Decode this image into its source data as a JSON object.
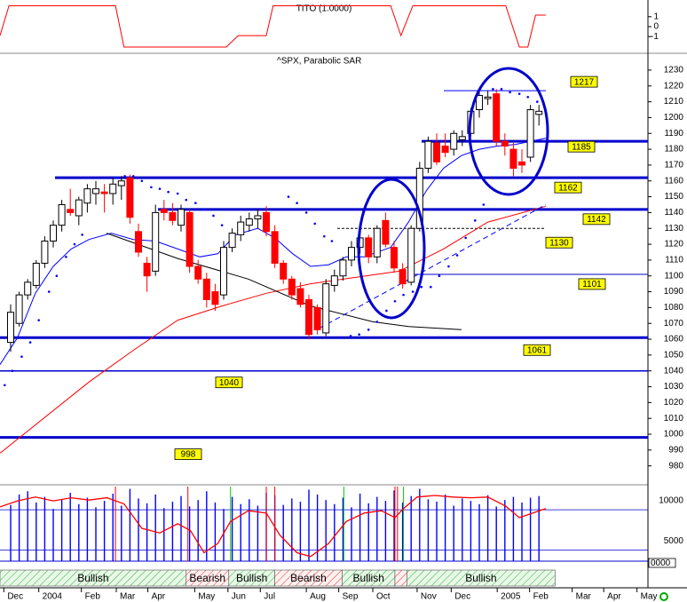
{
  "chart_data": [
    {
      "type": "line",
      "title": "TITO (1.0000)",
      "color": "#ff0000",
      "x": [
        -1.25,
        -0.2,
        12.3,
        13.3,
        25.3,
        26.7,
        30,
        30.8,
        44.6,
        45.8,
        47.2,
        58.1,
        59.7,
        60.7,
        61.6,
        62.8
      ],
      "values": [
        -0.9,
        2.1,
        2.1,
        -2.05,
        -2.05,
        -0.9,
        -0.9,
        2.1,
        2.1,
        -0.9,
        2.1,
        2.1,
        -2.05,
        -2.05,
        1.16,
        1.16
      ],
      "xlim": [
        -1.25,
        74.79
      ],
      "ylim": [
        -2.5,
        2.5
      ],
      "yticks": [
        1,
        0,
        -1
      ]
    },
    {
      "type": "candlestick",
      "title": "^SPX, Parabolic SAR",
      "x": [
        0,
        1,
        2,
        3,
        4,
        5,
        6,
        7,
        8,
        9,
        10,
        11,
        12,
        13,
        14,
        15,
        16,
        17,
        18,
        19,
        20,
        21,
        22,
        23,
        24,
        25,
        26,
        27,
        28,
        29,
        30,
        31,
        32,
        33,
        34,
        35,
        36,
        37,
        38,
        39,
        40,
        41,
        42,
        43,
        44,
        45,
        46,
        47,
        48,
        49,
        50,
        51,
        52,
        53,
        54,
        55,
        56,
        57,
        58,
        59,
        60,
        61,
        62
      ],
      "open": [
        1058,
        1070,
        1088,
        1094,
        1108,
        1122,
        1132,
        1142,
        1138,
        1146,
        1152,
        1153,
        1152,
        1157,
        1162,
        1128,
        1108,
        1103,
        1142,
        1140,
        1132,
        1140,
        1106,
        1098,
        1090,
        1088,
        1118,
        1126,
        1132,
        1136,
        1140,
        1128,
        1108,
        1098,
        1092,
        1085,
        1080,
        1064,
        1094,
        1100,
        1110,
        1118,
        1124,
        1112,
        1135,
        1118,
        1104,
        1096,
        1130,
        1168,
        1184,
        1182,
        1180,
        1186,
        1190,
        1205,
        1212,
        1215,
        1185,
        1180,
        1172,
        1175,
        1202
      ],
      "high": [
        1082,
        1090,
        1098,
        1110,
        1125,
        1135,
        1148,
        1155,
        1150,
        1158,
        1160,
        1158,
        1162,
        1163,
        1164,
        1133,
        1112,
        1145,
        1148,
        1146,
        1145,
        1142,
        1110,
        1102,
        1095,
        1122,
        1130,
        1138,
        1140,
        1142,
        1144,
        1132,
        1110,
        1100,
        1096,
        1088,
        1082,
        1098,
        1104,
        1112,
        1122,
        1128,
        1126,
        1132,
        1140,
        1122,
        1108,
        1132,
        1172,
        1188,
        1190,
        1190,
        1192,
        1192,
        1206,
        1217,
        1217,
        1218,
        1190,
        1184,
        1180,
        1208,
        1208
      ],
      "low": [
        1052,
        1068,
        1085,
        1092,
        1105,
        1118,
        1128,
        1138,
        1132,
        1140,
        1145,
        1140,
        1145,
        1148,
        1133,
        1112,
        1090,
        1100,
        1135,
        1132,
        1128,
        1102,
        1095,
        1080,
        1078,
        1085,
        1115,
        1122,
        1128,
        1130,
        1125,
        1105,
        1095,
        1085,
        1080,
        1060,
        1063,
        1062,
        1090,
        1097,
        1106,
        1114,
        1108,
        1108,
        1118,
        1102,
        1092,
        1094,
        1128,
        1165,
        1170,
        1175,
        1176,
        1182,
        1188,
        1200,
        1208,
        1182,
        1176,
        1163,
        1165,
        1172,
        1195
      ],
      "close": [
        1077,
        1088,
        1096,
        1108,
        1122,
        1132,
        1145,
        1140,
        1148,
        1155,
        1155,
        1152,
        1158,
        1160,
        1137,
        1115,
        1100,
        1140,
        1140,
        1135,
        1142,
        1106,
        1098,
        1085,
        1082,
        1118,
        1127,
        1134,
        1136,
        1138,
        1128,
        1108,
        1098,
        1088,
        1082,
        1063,
        1066,
        1095,
        1100,
        1110,
        1118,
        1124,
        1112,
        1130,
        1120,
        1105,
        1095,
        1130,
        1168,
        1185,
        1172,
        1178,
        1190,
        1188,
        1204,
        1214,
        1213,
        1185,
        1182,
        1168,
        1170,
        1205,
        1204
      ],
      "up_color": "#ffffff",
      "down_color": "#ff0000",
      "lines": [
        {
          "color": "#0000ff",
          "x": [
            -1.25,
            0.8,
            2.9,
            5,
            7.1,
            9.2,
            11.8,
            14.4,
            17,
            19.6,
            22.2,
            24.3,
            26.4,
            29,
            31,
            33.1,
            35.2,
            37.3,
            39.4,
            41.5,
            44.6,
            46.7,
            48.8,
            50.8,
            52.9,
            55,
            57.1,
            59.2,
            62.8
          ],
          "values": [
            1044,
            1061,
            1089,
            1106,
            1117,
            1123,
            1127,
            1123,
            1122,
            1117,
            1112,
            1114,
            1126,
            1130,
            1124,
            1114,
            1106,
            1107,
            1112,
            1112,
            1118,
            1134,
            1154,
            1168,
            1176,
            1180,
            1182,
            1183,
            1187
          ]
        },
        {
          "color": "#ff0000",
          "x": [
            -1.25,
            9.2,
            14.4,
            19.6,
            24.8,
            30,
            35.2,
            40.4,
            45.6,
            50.8,
            56,
            62.8
          ],
          "values": [
            988,
            1033,
            1053,
            1072,
            1081,
            1089,
            1095,
            1099,
            1103,
            1117,
            1134,
            1144
          ]
        },
        {
          "color": "#000000",
          "x": [
            11.25,
            19.6,
            27.9,
            35.2,
            42.5,
            46.7,
            52.9
          ],
          "values": [
            1127,
            1111,
            1098,
            1081,
            1071,
            1068,
            1066
          ]
        },
        {
          "color": "#0000ff",
          "dashed": true,
          "x": [
            36.25,
            62.8
          ],
          "values": [
            1067,
            1145
          ]
        }
      ],
      "sar": {
        "color": "#0000ff",
        "x": [
          -0.7,
          0.2,
          1.3,
          2.3,
          3.3,
          4.5,
          5.4,
          6.5,
          7.5,
          8.4,
          12.5,
          13.4,
          14.4,
          15.4,
          16.5,
          17.5,
          18.5,
          19.6,
          20.6,
          21.7,
          22.7,
          23.8,
          24.8,
          32.6,
          33.6,
          34.7,
          35.7,
          36.8,
          37.7,
          39.9,
          40.9,
          42,
          43,
          44.1,
          45.1,
          46.1,
          47.2,
          48.2,
          49.3,
          50.3,
          51.4,
          52.4,
          53.4,
          54.5,
          55.5,
          56.6,
          57.6,
          58.6,
          59.7,
          60.7,
          61.8
        ],
        "values": [
          1031,
          1040,
          1049,
          1058,
          1072,
          1090,
          1100,
          1112,
          1120,
          1126,
          1162,
          1163,
          1163,
          1160,
          1156,
          1155,
          1153,
          1152,
          1148,
          1146,
          1142,
          1138,
          1132,
          1150,
          1146,
          1140,
          1133,
          1125,
          1122,
          1062,
          1063,
          1066,
          1071,
          1078,
          1084,
          1088,
          1090,
          1093,
          1093,
          1100,
          1106,
          1113,
          1124,
          1135,
          1145,
          1218,
          1218,
          1216,
          1215,
          1213,
          1210
        ]
      },
      "levels": [
        1217,
        1185,
        1162,
        1142,
        1130,
        1101,
        1061,
        1040,
        998
      ],
      "xlim": [
        -1.25,
        74.79
      ],
      "ylim": [
        968.6,
        1239.5
      ],
      "yticks": [
        980,
        990,
        1000,
        1010,
        1020,
        1030,
        1040,
        1050,
        1060,
        1070,
        1080,
        1090,
        1100,
        1110,
        1120,
        1130,
        1140,
        1150,
        1160,
        1170,
        1180,
        1190,
        1200,
        1210,
        1220,
        1230
      ],
      "xticks": [
        {
          "value": -0.8,
          "label": "Dec"
        },
        {
          "value": 3.3,
          "label": "2004"
        },
        {
          "value": 8.3,
          "label": "Feb"
        },
        {
          "value": 12.4,
          "label": "Mar"
        },
        {
          "value": 16.1,
          "label": "Apr"
        },
        {
          "value": 21.6,
          "label": "May"
        },
        {
          "value": 25.5,
          "label": "Jun"
        },
        {
          "value": 29.3,
          "label": "Jul"
        },
        {
          "value": 34.7,
          "label": "Aug"
        },
        {
          "value": 38.5,
          "label": "Sep"
        },
        {
          "value": 42.5,
          "label": "Oct"
        },
        {
          "value": 47.7,
          "label": "Nov"
        },
        {
          "value": 51.7,
          "label": "Dec"
        },
        {
          "value": 57.1,
          "label": "2005"
        },
        {
          "value": 60.9,
          "label": "Feb"
        },
        {
          "value": 65.9,
          "label": "Mar"
        },
        {
          "value": 69.6,
          "label": "Apr"
        },
        {
          "value": 73.5,
          "label": "May"
        }
      ]
    },
    {
      "type": "bar",
      "color": "#0000ff",
      "values": [
        9500,
        10800,
        11200,
        9800,
        10500,
        9000,
        10200,
        11000,
        9600,
        10400,
        9200,
        10000,
        10900,
        9400,
        11500,
        10300,
        9700,
        10800,
        9100,
        9900,
        10600,
        9300,
        10100,
        11200,
        9800,
        9000,
        10500,
        9600,
        10200,
        9400,
        11000,
        10700,
        9500,
        10300,
        9900,
        11400,
        10800,
        10100,
        9600,
        10400,
        9200,
        10900,
        9700,
        10500,
        10000,
        11300,
        9800,
        10600,
        11500,
        10200,
        9900,
        10800,
        9400,
        10300,
        10000,
        9600,
        10700,
        9300,
        10100,
        10500,
        9800,
        10400,
        10600
      ],
      "ylim": [
        2500,
        12000
      ],
      "yticks": [
        10000,
        5000
      ],
      "grid": true,
      "overflow_label": "0000",
      "signals": [
        {
          "x": 12.3,
          "color": "#ff0000"
        },
        {
          "x": 20.8,
          "color": "#ff0000"
        },
        {
          "x": 30,
          "color": "#ff0000"
        },
        {
          "x": 31,
          "color": "#ff0000"
        },
        {
          "x": 45.1,
          "color": "#ff0000"
        },
        {
          "x": 45.4,
          "color": "#ff0000"
        },
        {
          "x": 25.8,
          "color": "#00cc00"
        },
        {
          "x": 39.1,
          "color": "#00cc00"
        },
        {
          "x": 46.1,
          "color": "#00cc00"
        }
      ],
      "stochastic": {
        "color": "#ff0000",
        "ylim": [
          0,
          100
        ],
        "x": [
          -1.25,
          0.8,
          2.9,
          5,
          7.1,
          9.2,
          11.3,
          13.3,
          15.4,
          17.5,
          19.6,
          21.1,
          22.7,
          24.3,
          25.8,
          27.9,
          30,
          31.6,
          33.6,
          35.2,
          37.3,
          39.4,
          41.5,
          43.5,
          45.1,
          46.1,
          47.7,
          49.8,
          51.9,
          54,
          56,
          58.1,
          59.7,
          61.3,
          62.8
        ],
        "values": [
          71,
          79,
          84,
          79,
          83,
          80,
          83,
          75,
          43,
          37,
          49,
          40,
          11,
          23,
          52,
          66,
          63,
          34,
          11,
          6,
          23,
          52,
          63,
          66,
          57,
          69,
          84,
          86,
          84,
          83,
          84,
          72,
          57,
          63,
          69
        ]
      },
      "regions": [
        {
          "x": [
            -1.25,
            20.6
          ],
          "label": "Bullish",
          "color": "green"
        },
        {
          "x": [
            20.6,
            25.6
          ],
          "label": "Bearish",
          "color": "red"
        },
        {
          "x": [
            25.6,
            31
          ],
          "label": "Bullish",
          "color": "green"
        },
        {
          "x": [
            31,
            38.9
          ],
          "label": "Bearish",
          "color": "red"
        },
        {
          "x": [
            38.9,
            45.1
          ],
          "label": "Bullish",
          "color": "green"
        },
        {
          "x": [
            45.1,
            46.5
          ],
          "color": "red"
        },
        {
          "x": [
            46.5,
            63.9
          ],
          "label": "Bullish",
          "color": "green"
        }
      ]
    }
  ]
}
